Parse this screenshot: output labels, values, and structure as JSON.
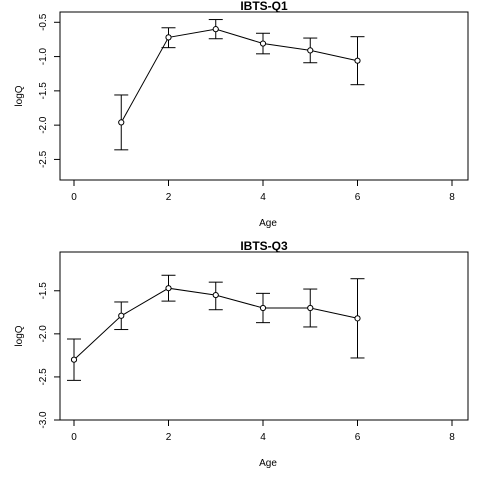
{
  "chart_data": [
    {
      "type": "scatter",
      "title": "IBTS-Q1",
      "xlabel": "Age",
      "ylabel": "logQ",
      "xlim": [
        0,
        8
      ],
      "ylim": [
        -2.8,
        -0.35
      ],
      "xticks": [
        "0",
        "2",
        "4",
        "6",
        "8"
      ],
      "yticks": [
        "-0.5",
        "-1.0",
        "-1.5",
        "-2.0",
        "-2.5"
      ],
      "x": [
        1,
        2,
        3,
        4,
        5,
        6
      ],
      "y": [
        -1.96,
        -0.72,
        -0.6,
        -0.81,
        -0.91,
        -1.06
      ],
      "lower": [
        -2.36,
        -0.87,
        -0.74,
        -0.96,
        -1.09,
        -1.41
      ],
      "upper": [
        -1.56,
        -0.58,
        -0.46,
        -0.66,
        -0.73,
        -0.71
      ],
      "grid": false
    },
    {
      "type": "scatter",
      "title": "IBTS-Q3",
      "xlabel": "Age",
      "ylabel": "logQ",
      "xlim": [
        0,
        8
      ],
      "ylim": [
        -3.0,
        -1.05
      ],
      "xticks": [
        "0",
        "2",
        "4",
        "6",
        "8"
      ],
      "yticks": [
        "-1.5",
        "-2.0",
        "-2.5",
        "-3.0"
      ],
      "x": [
        0,
        1,
        2,
        3,
        4,
        5,
        6
      ],
      "y": [
        -2.3,
        -1.79,
        -1.47,
        -1.55,
        -1.7,
        -1.7,
        -1.82
      ],
      "lower": [
        -2.54,
        -1.95,
        -1.62,
        -1.72,
        -1.87,
        -1.92,
        -2.28
      ],
      "upper": [
        -2.06,
        -1.63,
        -1.32,
        -1.4,
        -1.53,
        -1.48,
        -1.36
      ],
      "grid": false
    }
  ]
}
